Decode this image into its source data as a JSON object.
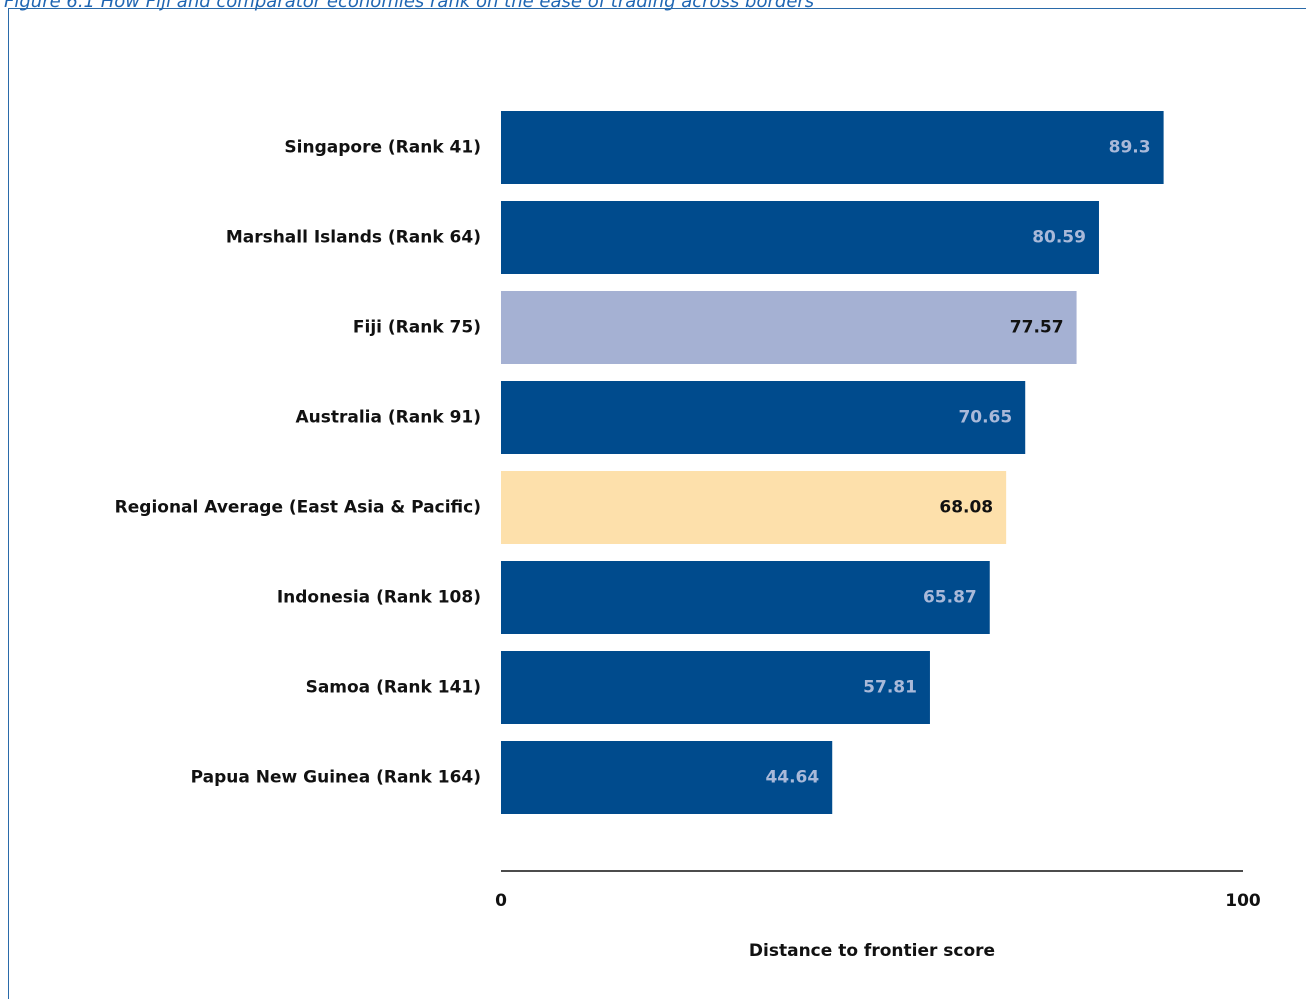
{
  "caption": "Figure 6.1 How Fiji and comparator economies rank on the ease of trading across borders",
  "chart_data": {
    "type": "bar",
    "orientation": "horizontal",
    "categories": [
      "Singapore (Rank 41)",
      "Marshall Islands (Rank 64)",
      "Fiji (Rank 75)",
      "Australia (Rank 91)",
      "Regional Average (East Asia & Pacific)",
      "Indonesia (Rank 108)",
      "Samoa (Rank 141)",
      "Papua New Guinea (Rank 164)"
    ],
    "values": [
      89.3,
      80.59,
      77.57,
      70.65,
      68.08,
      65.87,
      57.81,
      44.64
    ],
    "value_labels": [
      "89.3",
      "80.59",
      "77.57",
      "70.65",
      "68.08",
      "65.87",
      "57.81",
      "44.64"
    ],
    "bar_colors": [
      "#004b8d",
      "#004b8d",
      "#a5b1d3",
      "#004b8d",
      "#fde0ab",
      "#004b8d",
      "#004b8d",
      "#004b8d"
    ],
    "label_colors": [
      "#a9b9d9",
      "#a9b9d9",
      "#111111",
      "#a9b9d9",
      "#111111",
      "#a9b9d9",
      "#a9b9d9",
      "#a9b9d9"
    ],
    "xlabel": "Distance to frontier score",
    "ylabel": "",
    "xlim": [
      0,
      100
    ],
    "x_ticks": [
      "0",
      "100"
    ],
    "grid": false,
    "legend": "none"
  }
}
